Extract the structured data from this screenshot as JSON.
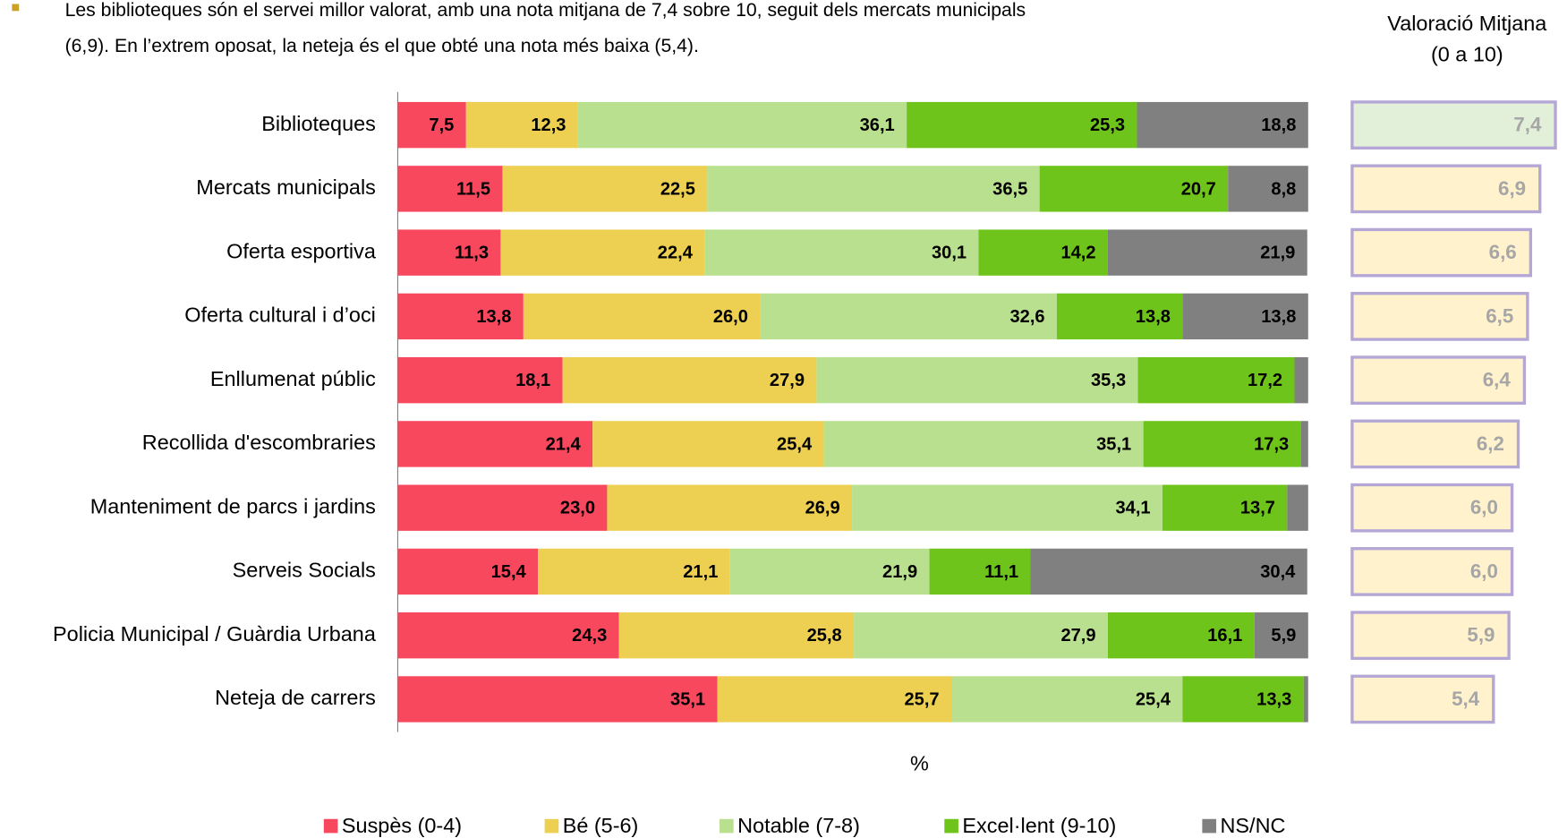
{
  "chart_data": {
    "type": "stacked_bar_horizontal",
    "paragraph": [
      "Les biblioteques són el servei millor valorat, amb una nota mitjana de 7,4 sobre 10, seguit dels mercats municipals",
      "(6,9). En l’extrem oposat, la neteja és el que obté una nota més baixa (5,4)."
    ],
    "x_label": "%",
    "xlim": [
      0,
      100
    ],
    "categories": [
      "Biblioteques",
      "Mercats municipals",
      "Oferta esportiva",
      "Oferta cultural i d’oci",
      "Enllumenat públic",
      "Recollida d'escombraries",
      "Manteniment de parcs i jardins",
      "Serveis Socials",
      "Policia Municipal / Guàrdia Urbana",
      "Neteja de carrers"
    ],
    "series": [
      {
        "name": "Suspès (0-4)",
        "color": "#f8485e",
        "values": [
          7.5,
          11.5,
          11.3,
          13.8,
          18.1,
          21.4,
          23.0,
          15.4,
          24.3,
          35.1
        ],
        "value_labels": [
          "7,5",
          "11,5",
          "11,3",
          "13,8",
          "18,1",
          "21,4",
          "23,0",
          "15,4",
          "24,3",
          "35,1"
        ]
      },
      {
        "name": "Bé (5-6)",
        "color": "#edd051",
        "values": [
          12.3,
          22.5,
          22.4,
          26.0,
          27.9,
          25.4,
          26.9,
          21.1,
          25.8,
          25.7
        ],
        "value_labels": [
          "12,3",
          "22,5",
          "22,4",
          "26,0",
          "27,9",
          "25,4",
          "26,9",
          "21,1",
          "25,8",
          "25,7"
        ]
      },
      {
        "name": "Notable (7-8)",
        "color": "#b9e08e",
        "values": [
          36.1,
          36.5,
          30.1,
          32.6,
          35.3,
          35.1,
          34.1,
          21.9,
          27.9,
          25.4
        ],
        "value_labels": [
          "36,1",
          "36,5",
          "30,1",
          "32,6",
          "35,3",
          "35,1",
          "34,1",
          "21,9",
          "27,9",
          "25,4"
        ]
      },
      {
        "name": "Excel·lent (9-10)",
        "color": "#6fc41c",
        "values": [
          25.3,
          20.7,
          14.2,
          13.8,
          17.2,
          17.3,
          13.7,
          11.1,
          16.1,
          13.3
        ],
        "value_labels": [
          "25,3",
          "20,7",
          "14,2",
          "13,8",
          "17,2",
          "17,3",
          "13,7",
          "11,1",
          "16,1",
          "13,3"
        ]
      },
      {
        "name": "NS/NC",
        "color": "#808080",
        "values": [
          18.8,
          8.8,
          21.9,
          13.8,
          1.5,
          0.8,
          2.3,
          30.4,
          5.9,
          0.5
        ],
        "value_labels": [
          "18,8",
          "8,8",
          "21,9",
          "13,8",
          null,
          null,
          null,
          "30,4",
          "5,9",
          null
        ]
      }
    ],
    "avg_rating": {
      "title": [
        "Valoració Mitjana",
        "(0 a 10)"
      ],
      "values": [
        7.4,
        6.9,
        6.6,
        6.5,
        6.4,
        6.2,
        6.0,
        6.0,
        5.9,
        5.4
      ],
      "value_labels": [
        "7,4",
        "6,9",
        "6,6",
        "6,5",
        "6,4",
        "6,2",
        "6,0",
        "6,0",
        "5,9",
        "5,4"
      ],
      "box_colors": [
        "#e2efd9",
        "#fff2cc",
        "#fff2cc",
        "#fff2cc",
        "#fff2cc",
        "#fff2cc",
        "#fff2cc",
        "#fff2cc",
        "#fff2cc",
        "#fff2cc"
      ],
      "border_color": "#b4a7d6"
    }
  }
}
